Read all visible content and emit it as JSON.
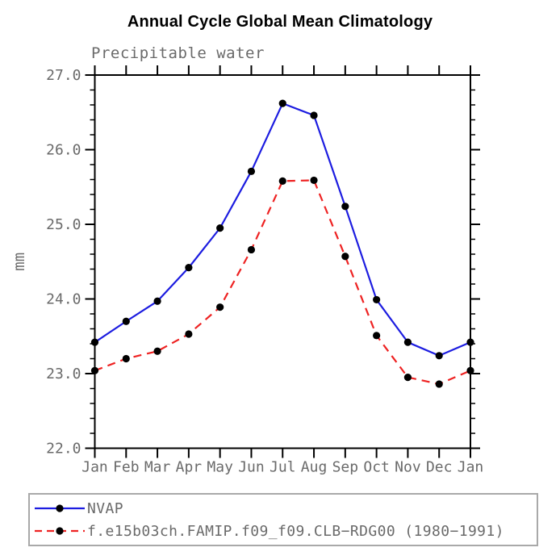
{
  "chart_data": {
    "type": "line",
    "title": "Annual Cycle Global Mean Climatology",
    "subtitle": "Precipitable water",
    "ylabel": "mm",
    "xlabel": "",
    "x_categories": [
      "Jan",
      "Feb",
      "Mar",
      "Apr",
      "May",
      "Jun",
      "Jul",
      "Aug",
      "Sep",
      "Oct",
      "Nov",
      "Dec",
      "Jan"
    ],
    "ylim": [
      22.0,
      27.0
    ],
    "ytick_major": [
      22.0,
      23.0,
      24.0,
      25.0,
      26.0,
      27.0
    ],
    "ytick_labels": [
      "22.0",
      "23.0",
      "24.0",
      "25.0",
      "26.0",
      "27.0"
    ],
    "ytick_minor_step": 0.2,
    "grid": false,
    "frame": "box-with-outward-ticks",
    "legend_position": "bottom-left-box",
    "axis_color": "#000000",
    "label_color": "#6a6a6a",
    "series": [
      {
        "name": "NVAP",
        "color": "#1c1ce0",
        "line_style": "solid",
        "marker": "filled-circle",
        "marker_color": "#000000",
        "values": [
          23.42,
          23.7,
          23.97,
          24.42,
          24.95,
          25.71,
          26.62,
          26.46,
          25.24,
          23.99,
          23.42,
          23.24,
          23.42
        ]
      },
      {
        "name": "f.e15b03ch.FAMIP.f09_f09.CLB−RDG00 (1980−1991)",
        "color": "#ee2222",
        "line_style": "dashed",
        "marker": "filled-circle",
        "marker_color": "#000000",
        "values": [
          23.04,
          23.2,
          23.3,
          23.53,
          23.89,
          24.66,
          25.58,
          25.59,
          24.57,
          23.51,
          22.95,
          22.86,
          23.04
        ]
      }
    ]
  }
}
